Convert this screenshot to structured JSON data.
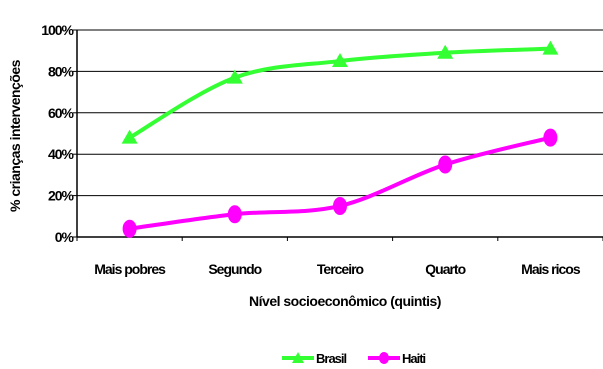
{
  "chart_data": {
    "type": "line",
    "categories": [
      "Mais pobres",
      "Segundo",
      "Terceiro",
      "Quarto",
      "Mais ricos"
    ],
    "series": [
      {
        "name": "Brasil",
        "values": [
          48,
          77,
          85,
          89,
          91
        ],
        "color": "#33ff33",
        "marker": "triangle"
      },
      {
        "name": "Haiti",
        "values": [
          4,
          11,
          15,
          35,
          48
        ],
        "color": "#ff00ff",
        "marker": "circle"
      }
    ],
    "ylim": [
      0,
      100
    ],
    "yticks": [
      0,
      20,
      40,
      60,
      80,
      100
    ],
    "ytick_labels": [
      "0%",
      "20%",
      "40%",
      "60%",
      "80%",
      "100%"
    ],
    "xlabel": "Nível socioeconômico (quintis)",
    "ylabel": "% crianças intervenções",
    "legend_position": "bottom",
    "grid": "horizontal"
  }
}
